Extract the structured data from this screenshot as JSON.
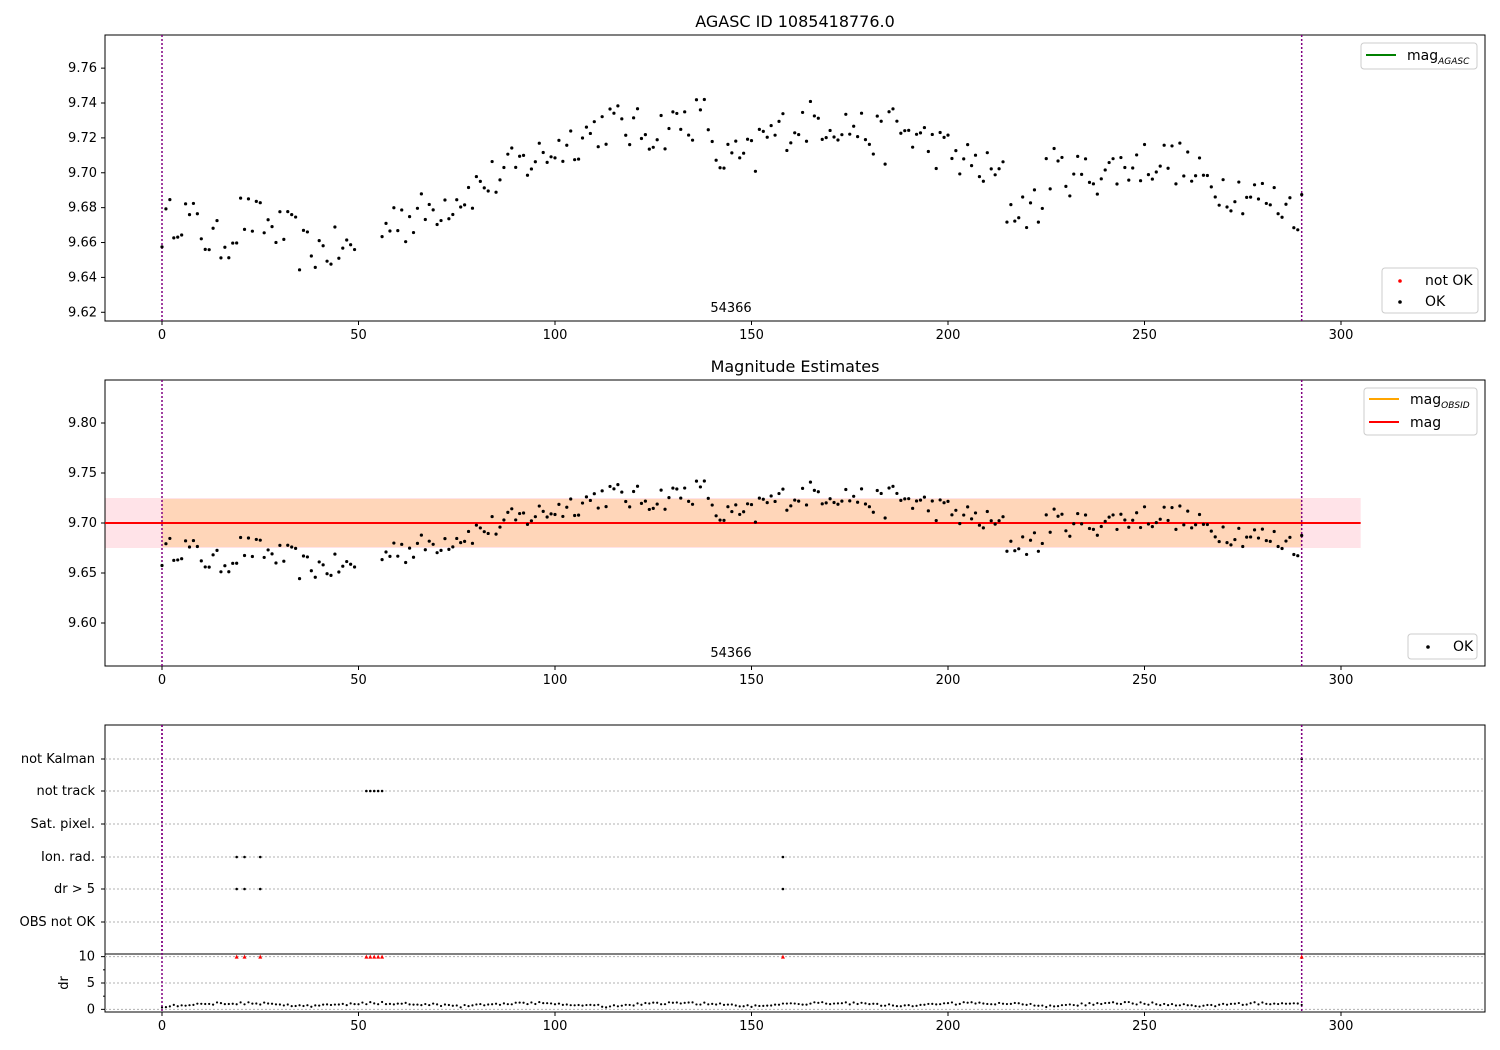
{
  "chart_data": [
    {
      "name": "top",
      "type": "scatter",
      "title": "AGASC ID 1085418776.0",
      "annotation": "54366",
      "xlim": [
        -15,
        335
      ],
      "ylim": [
        9.615,
        9.779
      ],
      "xticks": [
        0,
        50,
        100,
        150,
        200,
        250,
        300
      ],
      "yticks": [
        9.62,
        9.64,
        9.66,
        9.68,
        9.7,
        9.72,
        9.74,
        9.76
      ],
      "yticks_labels": [
        "9.62",
        "9.64",
        "9.66",
        "9.68",
        "9.70",
        "9.72",
        "9.74",
        "9.76"
      ],
      "vlines": [
        0,
        290
      ],
      "legend_lines": [
        {
          "name": "mag",
          "sub": "AGASC",
          "color": "#008000"
        }
      ],
      "legend_points": [
        {
          "name": "not OK",
          "color": "#ff0000"
        },
        {
          "name": "OK",
          "color": "#000000"
        }
      ],
      "series_note": "OK points: x = sample index, y = magnitude"
    },
    {
      "name": "middle",
      "type": "scatter",
      "title": "Magnitude Estimates",
      "annotation": "54366",
      "xlim": [
        -15,
        335
      ],
      "ylim": [
        9.557,
        9.843
      ],
      "xticks": [
        0,
        50,
        100,
        150,
        200,
        250,
        300
      ],
      "yticks": [
        9.6,
        9.65,
        9.7,
        9.75,
        9.8
      ],
      "yticks_labels": [
        "9.60",
        "9.65",
        "9.70",
        "9.75",
        "9.80"
      ],
      "vlines": [
        0,
        290
      ],
      "mag": 9.7,
      "bands": [
        {
          "y0": 9.675,
          "y1": 9.725,
          "x0": -15,
          "x1": 305,
          "color": "#ffc0cb",
          "opacity": 0.45
        },
        {
          "y0": 9.676,
          "y1": 9.724,
          "x0": 0,
          "x1": 290,
          "color": "#ffa500",
          "opacity": 0.2
        }
      ],
      "legend_lines": [
        {
          "name": "mag",
          "sub": "OBSID",
          "color": "#ffa500"
        },
        {
          "name": "mag",
          "sub": "",
          "color": "#ff0000"
        }
      ],
      "legend_points": [
        {
          "name": "OK",
          "color": "#000000"
        }
      ]
    },
    {
      "name": "flags",
      "type": "scatter",
      "categories": [
        "not Kalman",
        "not track",
        "Sat. pixel.",
        "Ion. rad.",
        "dr > 5",
        "OBS not OK"
      ],
      "flag_points": {
        "not Kalman": [
          290
        ],
        "not track": [
          52,
          53,
          54,
          55,
          56
        ],
        "Sat. pixel.": [],
        "Ion. rad.": [
          19,
          21,
          25,
          158
        ],
        "dr > 5": [
          19,
          21,
          25,
          158
        ],
        "OBS not OK": []
      },
      "xlim": [
        -15,
        335
      ],
      "vlines": [
        0,
        290
      ]
    },
    {
      "name": "dr",
      "type": "scatter",
      "ylabel": "dr",
      "ylim": [
        -0.5,
        10.5
      ],
      "yticks": [
        0,
        5,
        10
      ],
      "yticks_labels": [
        "0",
        "5",
        "10"
      ],
      "xticks": [
        0,
        50,
        100,
        150,
        200,
        250,
        300
      ],
      "xlim": [
        -15,
        335
      ],
      "red_markers_x": [
        19,
        21,
        25,
        52,
        53,
        54,
        55,
        56,
        158,
        290
      ],
      "vlines": [
        0,
        290
      ]
    }
  ]
}
